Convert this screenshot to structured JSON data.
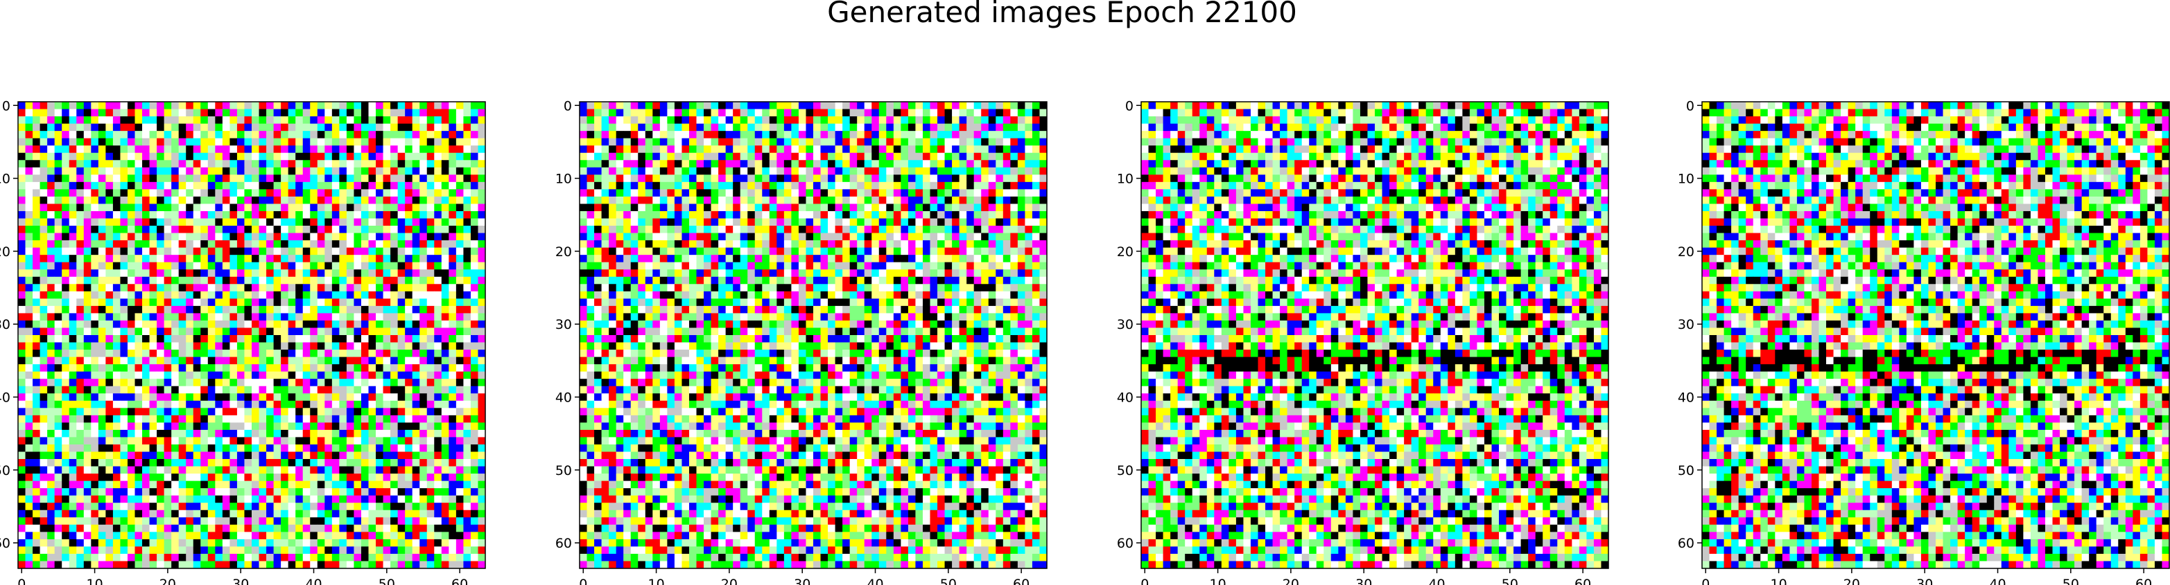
{
  "chart_data": {
    "type": "heatmap",
    "title": "Generated images Epoch 22100",
    "grid": false,
    "panels": [
      {
        "name": "generated-image-1",
        "width": 64,
        "height": 64,
        "seed": 11,
        "band_rows": []
      },
      {
        "name": "generated-image-2",
        "width": 64,
        "height": 64,
        "seed": 27,
        "band_rows": []
      },
      {
        "name": "generated-image-3",
        "width": 64,
        "height": 64,
        "seed": 43,
        "band_rows": [
          34,
          35,
          36
        ]
      },
      {
        "name": "generated-image-4",
        "width": 64,
        "height": 64,
        "seed": 59,
        "band_rows": [
          34,
          35,
          36
        ]
      }
    ],
    "xticks": [
      0,
      10,
      20,
      30,
      40,
      50,
      60
    ],
    "yticks": [
      0,
      10,
      20,
      30,
      40,
      50,
      60
    ],
    "xlim": [
      -0.5,
      63.5
    ],
    "ylim": [
      63.5,
      -0.5
    ],
    "palette": [
      "#ff0000",
      "#00ff00",
      "#0000ff",
      "#ffff00",
      "#ff00ff",
      "#00ffff",
      "#ffffff",
      "#000000",
      "#c8c8c8",
      "#ffff80",
      "#80ff80",
      "#c0ffc0"
    ]
  }
}
